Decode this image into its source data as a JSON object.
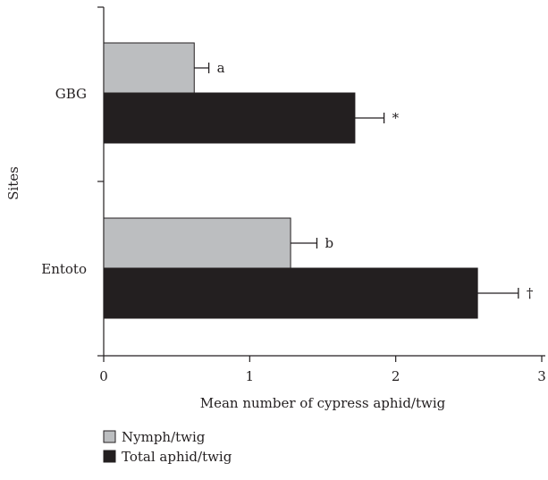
{
  "chart_data": {
    "type": "bar",
    "orientation": "horizontal",
    "xlabel": "Mean number of cypress aphid/twig",
    "ylabel": "Sites",
    "xlim": [
      0,
      3
    ],
    "x_ticks": [
      "0",
      "1",
      "2",
      "3"
    ],
    "categories": [
      "GBG",
      "Entoto"
    ],
    "series": [
      {
        "name": "Nymph/twig",
        "color": "#bcbec0",
        "values": [
          0.62,
          1.28
        ],
        "errors": [
          0.1,
          0.18
        ],
        "labels": [
          "a",
          "b"
        ]
      },
      {
        "name": "Total aphid/twig",
        "color": "#231f20",
        "values": [
          1.72,
          2.56
        ],
        "errors": [
          0.2,
          0.28
        ],
        "labels": [
          "*",
          "†"
        ]
      }
    ],
    "grid": false,
    "legend_position": "bottom-left"
  }
}
